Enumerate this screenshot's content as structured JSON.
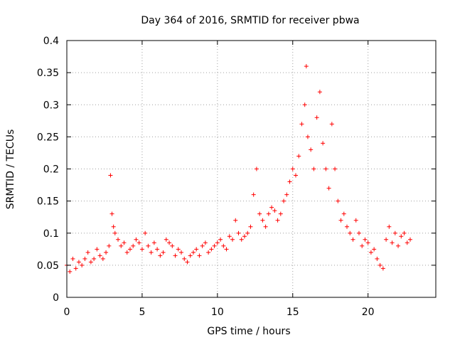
{
  "chart_data": {
    "type": "scatter",
    "title": "Day 364 of 2016, SRMTID for receiver pbwa",
    "xlabel": "GPS time / hours",
    "ylabel": "SRMTID / TECUs",
    "xlim": [
      0,
      24.5
    ],
    "ylim": [
      0,
      0.4
    ],
    "xticks": [
      0,
      5,
      10,
      15,
      20
    ],
    "xtick_labels": [
      "0",
      "5",
      "10",
      "15",
      "20"
    ],
    "yticks": [
      0,
      0.05,
      0.1,
      0.15,
      0.2,
      0.25,
      0.3,
      0.35,
      0.4
    ],
    "ytick_labels": [
      "0",
      "0.05",
      "0.1",
      "0.15",
      "0.2",
      "0.25",
      "0.3",
      "0.35",
      "0.4"
    ],
    "grid": true,
    "marker": "plus",
    "color": "#ff0000",
    "series": [
      {
        "name": "SRMTID",
        "x": [
          0.0,
          0.2,
          0.4,
          0.6,
          0.8,
          1.0,
          1.2,
          1.4,
          1.6,
          1.8,
          2.0,
          2.2,
          2.4,
          2.6,
          2.8,
          2.9,
          3.0,
          3.1,
          3.2,
          3.4,
          3.6,
          3.8,
          4.0,
          4.2,
          4.4,
          4.6,
          4.8,
          5.0,
          5.2,
          5.4,
          5.6,
          5.8,
          6.0,
          6.2,
          6.4,
          6.6,
          6.8,
          7.0,
          7.2,
          7.4,
          7.6,
          7.8,
          8.0,
          8.2,
          8.4,
          8.6,
          8.8,
          9.0,
          9.2,
          9.4,
          9.6,
          9.8,
          10.0,
          10.2,
          10.4,
          10.6,
          10.8,
          11.0,
          11.2,
          11.4,
          11.6,
          11.8,
          12.0,
          12.2,
          12.4,
          12.6,
          12.8,
          13.0,
          13.2,
          13.4,
          13.6,
          13.8,
          14.0,
          14.2,
          14.4,
          14.6,
          14.8,
          15.0,
          15.2,
          15.4,
          15.6,
          15.8,
          15.9,
          16.0,
          16.2,
          16.4,
          16.6,
          16.8,
          17.0,
          17.2,
          17.4,
          17.6,
          17.8,
          18.0,
          18.2,
          18.4,
          18.6,
          18.8,
          19.0,
          19.2,
          19.4,
          19.6,
          19.8,
          20.0,
          20.2,
          20.4,
          20.6,
          20.8,
          21.0,
          21.2,
          21.4,
          21.6,
          21.8,
          22.0,
          22.2,
          22.4,
          22.6,
          22.8
        ],
        "y": [
          0.05,
          0.04,
          0.06,
          0.045,
          0.055,
          0.05,
          0.06,
          0.07,
          0.055,
          0.06,
          0.075,
          0.065,
          0.06,
          0.07,
          0.08,
          0.19,
          0.13,
          0.11,
          0.1,
          0.09,
          0.08,
          0.085,
          0.07,
          0.075,
          0.08,
          0.09,
          0.085,
          0.075,
          0.1,
          0.08,
          0.07,
          0.085,
          0.075,
          0.065,
          0.07,
          0.09,
          0.085,
          0.08,
          0.065,
          0.075,
          0.07,
          0.06,
          0.055,
          0.065,
          0.07,
          0.075,
          0.065,
          0.08,
          0.085,
          0.07,
          0.075,
          0.08,
          0.085,
          0.09,
          0.08,
          0.075,
          0.095,
          0.09,
          0.12,
          0.1,
          0.09,
          0.095,
          0.1,
          0.11,
          0.16,
          0.2,
          0.13,
          0.12,
          0.11,
          0.13,
          0.14,
          0.135,
          0.12,
          0.13,
          0.15,
          0.16,
          0.18,
          0.2,
          0.19,
          0.22,
          0.27,
          0.3,
          0.36,
          0.25,
          0.23,
          0.2,
          0.28,
          0.32,
          0.24,
          0.2,
          0.17,
          0.27,
          0.2,
          0.15,
          0.12,
          0.13,
          0.11,
          0.1,
          0.09,
          0.12,
          0.1,
          0.08,
          0.09,
          0.085,
          0.07,
          0.075,
          0.06,
          0.05,
          0.045,
          0.09,
          0.11,
          0.085,
          0.1,
          0.08,
          0.095,
          0.1,
          0.085,
          0.09
        ]
      }
    ]
  }
}
